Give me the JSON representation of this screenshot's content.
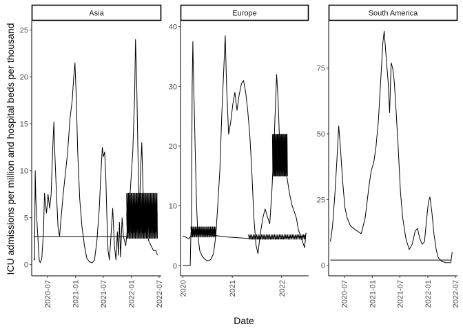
{
  "chart_data": {
    "type": "line",
    "xlabel": "Date",
    "ylabel": "ICU admissions per million and hospital beds per thousand",
    "panels": [
      {
        "name": "Asia",
        "x_ticks": [
          "2020-07",
          "2021-01",
          "2021-07",
          "2022-01",
          "2022-07"
        ],
        "y_ticks": [
          "0",
          "5",
          "10",
          "15",
          "20",
          "25"
        ],
        "ylim": [
          -1.2,
          26
        ],
        "xlim": [
          "2020-03-20",
          "2022-07-15"
        ],
        "series": [
          {
            "points": [
              [
                "2020-04-01",
                0.6
              ],
              [
                "2020-04-08",
                0.5
              ],
              [
                "2020-04-12",
                10.0
              ],
              [
                "2020-04-16",
                7.0
              ],
              [
                "2020-04-22",
                5.0
              ],
              [
                "2020-05-01",
                2.5
              ],
              [
                "2020-05-08",
                0.5
              ],
              [
                "2020-05-15",
                0.2
              ],
              [
                "2020-05-25",
                0.6
              ],
              [
                "2020-06-05",
                3.5
              ],
              [
                "2020-06-12",
                7.6
              ],
              [
                "2020-06-18",
                6.5
              ],
              [
                "2020-06-25",
                5.5
              ],
              [
                "2020-07-05",
                7.5
              ],
              [
                "2020-07-15",
                6.0
              ],
              [
                "2020-07-25",
                7.5
              ],
              [
                "2020-08-05",
                12.5
              ],
              [
                "2020-08-12",
                15.2
              ],
              [
                "2020-08-18",
                12.0
              ],
              [
                "2020-08-28",
                8.0
              ],
              [
                "2020-09-08",
                4.0
              ],
              [
                "2020-09-18",
                3.0
              ],
              [
                "2020-10-01",
                5.5
              ],
              [
                "2020-10-12",
                7.5
              ],
              [
                "2020-10-25",
                9.5
              ],
              [
                "2020-11-10",
                12.0
              ],
              [
                "2020-11-25",
                15.5
              ],
              [
                "2020-12-10",
                17.5
              ],
              [
                "2020-12-20",
                20.0
              ],
              [
                "2020-12-28",
                21.5
              ],
              [
                "2021-01-05",
                18.0
              ],
              [
                "2021-01-15",
                12.0
              ],
              [
                "2021-01-28",
                7.0
              ],
              [
                "2021-02-12",
                4.0
              ],
              [
                "2021-02-28",
                2.0
              ],
              [
                "2021-03-15",
                0.7
              ],
              [
                "2021-04-01",
                0.3
              ],
              [
                "2021-04-20",
                0.2
              ],
              [
                "2021-05-05",
                0.5
              ],
              [
                "2021-05-20",
                2.5
              ],
              [
                "2021-06-05",
                6.0
              ],
              [
                "2021-06-15",
                9.5
              ],
              [
                "2021-06-25",
                12.5
              ],
              [
                "2021-07-02",
                11.5
              ],
              [
                "2021-07-10",
                12.0
              ],
              [
                "2021-07-18",
                9.0
              ],
              [
                "2021-07-25",
                5.0
              ],
              [
                "2021-08-01",
                1.5
              ],
              [
                "2021-08-10",
                0.5
              ],
              [
                "2021-08-20",
                3.0
              ],
              [
                "2021-09-01",
                6.0
              ],
              [
                "2021-09-12",
                2.0
              ],
              [
                "2021-09-22",
                0.5
              ],
              [
                "2021-10-01",
                3.5
              ],
              [
                "2021-10-08",
                1.0
              ],
              [
                "2021-10-15",
                4.5
              ],
              [
                "2021-10-22",
                0.8
              ],
              [
                "2021-11-01",
                5.0
              ],
              [
                "2021-11-10",
                3.0
              ],
              [
                "2021-11-25",
                2.0
              ],
              [
                "2021-12-10",
                4.5
              ],
              [
                "2021-12-25",
                8.0
              ],
              [
                "2022-01-10",
                12.0
              ],
              [
                "2022-01-22",
                18.0
              ],
              [
                "2022-01-28",
                24.0
              ],
              [
                "2022-02-05",
                19.0
              ],
              [
                "2022-02-15",
                10.0
              ],
              [
                "2022-02-22",
                5.0
              ],
              [
                "2022-03-01",
                9.5
              ],
              [
                "2022-03-10",
                13.0
              ],
              [
                "2022-03-18",
                8.0
              ],
              [
                "2022-03-28",
                4.0
              ],
              [
                "2022-04-10",
                3.5
              ],
              [
                "2022-04-25",
                2.5
              ],
              [
                "2022-05-10",
                2.0
              ],
              [
                "2022-05-25",
                1.5
              ],
              [
                "2022-06-10",
                1.5
              ],
              [
                "2022-06-20",
                1.0
              ]
            ]
          },
          {
            "points": [
              [
                "2020-04-01",
                3.0
              ],
              [
                "2021-12-01",
                3.0
              ]
            ]
          },
          {
            "oscillation": {
              "start": "2021-12-01",
              "end": "2022-06-20",
              "step_days": 3,
              "low": 2.8,
              "high": 7.6
            }
          },
          {
            "oscillation": {
              "start": "2021-12-01",
              "end": "2022-06-20",
              "step_days": 4,
              "low": 3.4,
              "high": 5.5
            }
          }
        ]
      },
      {
        "name": "Europe",
        "x_ticks": [
          "2020",
          "2021",
          "2022"
        ],
        "y_ticks": [
          "0",
          "10",
          "20",
          "30",
          "40"
        ],
        "ylim": [
          -1.7,
          41
        ],
        "xlim": [
          "2019-12-15",
          "2022-07-20"
        ],
        "series": [
          {
            "points": [
              [
                "2020-01-01",
                5.0
              ],
              [
                "2020-02-15",
                4.5
              ],
              [
                "2020-03-01",
                5.0
              ],
              [
                "2020-03-05",
                6.0
              ],
              [
                "2020-03-10",
                30.0
              ],
              [
                "2020-03-15",
                37.5
              ],
              [
                "2020-03-22",
                30.0
              ],
              [
                "2020-04-01",
                20.0
              ],
              [
                "2020-04-12",
                10.0
              ],
              [
                "2020-04-22",
                5.0
              ],
              [
                "2020-05-05",
                2.5
              ],
              [
                "2020-05-25",
                1.5
              ],
              [
                "2020-06-15",
                1.0
              ],
              [
                "2020-07-05",
                0.8
              ],
              [
                "2020-07-25",
                1.0
              ],
              [
                "2020-08-15",
                2.0
              ],
              [
                "2020-09-01",
                5.0
              ],
              [
                "2020-09-15",
                10.0
              ],
              [
                "2020-10-01",
                16.0
              ],
              [
                "2020-10-15",
                25.0
              ],
              [
                "2020-11-01",
                34.0
              ],
              [
                "2020-11-10",
                38.5
              ],
              [
                "2020-11-20",
                30.0
              ],
              [
                "2020-12-05",
                22.0
              ],
              [
                "2020-12-20",
                24.0
              ],
              [
                "2021-01-05",
                27.0
              ],
              [
                "2021-01-20",
                29.0
              ],
              [
                "2021-02-05",
                26.0
              ],
              [
                "2021-02-20",
                28.5
              ],
              [
                "2021-03-10",
                30.5
              ],
              [
                "2021-03-25",
                31.0
              ],
              [
                "2021-04-10",
                29.0
              ],
              [
                "2021-04-25",
                26.0
              ],
              [
                "2021-05-10",
                22.0
              ],
              [
                "2021-05-25",
                16.0
              ],
              [
                "2021-06-10",
                8.0
              ],
              [
                "2021-06-25",
                3.5
              ],
              [
                "2021-07-10",
                2.0
              ],
              [
                "2021-07-25",
                5.0
              ],
              [
                "2021-08-15",
                8.0
              ],
              [
                "2021-09-01",
                9.5
              ],
              [
                "2021-09-20",
                8.0
              ],
              [
                "2021-10-05",
                7.0
              ],
              [
                "2021-10-20",
                12.0
              ],
              [
                "2021-11-05",
                20.0
              ],
              [
                "2021-11-15",
                26.0
              ],
              [
                "2021-11-25",
                32.0
              ],
              [
                "2021-12-05",
                28.0
              ],
              [
                "2021-12-15",
                22.0
              ],
              [
                "2022-01-01",
                20.0
              ],
              [
                "2022-01-15",
                18.0
              ],
              [
                "2022-02-01",
                16.0
              ],
              [
                "2022-02-15",
                14.0
              ],
              [
                "2022-03-01",
                12.0
              ],
              [
                "2022-03-20",
                10.0
              ],
              [
                "2022-04-05",
                9.0
              ],
              [
                "2022-04-20",
                8.0
              ],
              [
                "2022-05-05",
                6.0
              ],
              [
                "2022-05-20",
                5.0
              ],
              [
                "2022-06-05",
                4.0
              ],
              [
                "2022-06-20",
                3.0
              ],
              [
                "2022-06-30",
                5.5
              ]
            ]
          },
          {
            "points": [
              [
                "2020-01-01",
                0.0
              ],
              [
                "2020-02-25",
                0.0
              ],
              [
                "2020-03-01",
                5.5
              ],
              [
                "2020-07-01",
                5.2
              ],
              [
                "2020-12-01",
                4.8
              ],
              [
                "2021-06-01",
                4.5
              ],
              [
                "2021-12-01",
                4.5
              ],
              [
                "2022-06-30",
                5.0
              ]
            ]
          },
          {
            "oscillation": {
              "start": "2020-03-01",
              "end": "2020-09-01",
              "step_days": 4,
              "low": 4.8,
              "high": 6.5
            }
          },
          {
            "oscillation": {
              "start": "2021-10-25",
              "end": "2022-02-15",
              "step_days": 3,
              "low": 15.0,
              "high": 22.0
            }
          },
          {
            "oscillation": {
              "start": "2021-05-01",
              "end": "2022-06-30",
              "step_days": 6,
              "low": 4.4,
              "high": 5.2
            }
          }
        ]
      },
      {
        "name": "South America",
        "x_ticks": [
          "2020-07",
          "2021-01",
          "2021-07",
          "2022-01",
          "2022-07"
        ],
        "y_ticks": [
          "0",
          "25",
          "50",
          "75"
        ],
        "ylim": [
          -4,
          93
        ],
        "xlim": [
          "2020-03-20",
          "2022-07-15"
        ],
        "series": [
          {
            "points": [
              [
                "2020-04-01",
                9.0
              ],
              [
                "2020-04-15",
                15.0
              ],
              [
                "2020-05-01",
                28.0
              ],
              [
                "2020-05-15",
                42.0
              ],
              [
                "2020-05-25",
                53.0
              ],
              [
                "2020-06-05",
                45.0
              ],
              [
                "2020-06-20",
                32.0
              ],
              [
                "2020-07-05",
                22.0
              ],
              [
                "2020-07-20",
                18.0
              ],
              [
                "2020-08-10",
                15.0
              ],
              [
                "2020-09-01",
                14.0
              ],
              [
                "2020-09-25",
                13.0
              ],
              [
                "2020-10-20",
                12.0
              ],
              [
                "2020-11-15",
                18.0
              ],
              [
                "2020-12-10",
                30.0
              ],
              [
                "2020-12-25",
                36.0
              ],
              [
                "2021-01-10",
                39.0
              ],
              [
                "2021-01-25",
                45.0
              ],
              [
                "2021-02-10",
                55.0
              ],
              [
                "2021-02-25",
                70.0
              ],
              [
                "2021-03-12",
                85.0
              ],
              [
                "2021-03-20",
                89.0
              ],
              [
                "2021-04-01",
                80.0
              ],
              [
                "2021-04-15",
                70.0
              ],
              [
                "2021-04-25",
                58.0
              ],
              [
                "2021-05-05",
                77.0
              ],
              [
                "2021-05-15",
                75.0
              ],
              [
                "2021-05-25",
                70.0
              ],
              [
                "2021-06-05",
                60.0
              ],
              [
                "2021-06-20",
                45.0
              ],
              [
                "2021-07-05",
                28.0
              ],
              [
                "2021-07-20",
                18.0
              ],
              [
                "2021-08-10",
                10.0
              ],
              [
                "2021-09-01",
                6.0
              ],
              [
                "2021-09-20",
                8.0
              ],
              [
                "2021-10-10",
                13.0
              ],
              [
                "2021-10-25",
                14.0
              ],
              [
                "2021-11-10",
                10.0
              ],
              [
                "2021-11-25",
                8.0
              ],
              [
                "2021-12-10",
                9.0
              ],
              [
                "2021-12-25",
                18.0
              ],
              [
                "2022-01-05",
                24.0
              ],
              [
                "2022-01-15",
                26.0
              ],
              [
                "2022-01-28",
                20.0
              ],
              [
                "2022-02-10",
                12.0
              ],
              [
                "2022-02-25",
                6.0
              ],
              [
                "2022-03-10",
                3.0
              ],
              [
                "2022-04-01",
                1.5
              ],
              [
                "2022-05-01",
                1.0
              ],
              [
                "2022-06-01",
                1.0
              ],
              [
                "2022-06-10",
                5.0
              ]
            ]
          },
          {
            "points": [
              [
                "2020-04-01",
                2.0
              ],
              [
                "2022-06-01",
                2.0
              ]
            ]
          }
        ]
      }
    ]
  }
}
